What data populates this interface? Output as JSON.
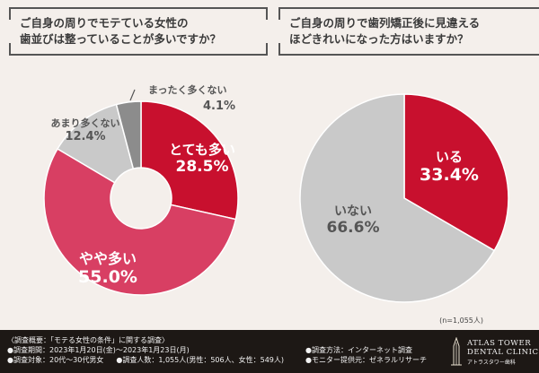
{
  "questions": {
    "left_line1": "ご自身の周りでモテている女性の",
    "left_line2": "歯並びは整っていることが多いですか？",
    "right_line1": "ご自身の周りで歯列矯正後に見違える",
    "right_line2": "ほどきれいになった方はいますか？"
  },
  "chart_data": [
    {
      "type": "pie",
      "style": "donut",
      "categories": [
        "とても多い",
        "やや多い",
        "あまり多くない",
        "まったく多くない"
      ],
      "values": [
        28.5,
        55.0,
        12.4,
        4.1
      ],
      "value_labels": [
        "28.5%",
        "55.0%",
        "12.4%",
        "4.1%"
      ],
      "colors": [
        "#c8102e",
        "#d83f63",
        "#c9c9c9",
        "#8c8c8c"
      ]
    },
    {
      "type": "pie",
      "categories": [
        "いる",
        "いない"
      ],
      "values": [
        33.4,
        66.6
      ],
      "value_labels": [
        "33.4%",
        "66.6%"
      ],
      "colors": [
        "#c8102e",
        "#c9c9c9"
      ]
    }
  ],
  "sample_note": "(n=1,055人)",
  "footer": {
    "survey_title": "〈調査概要：「モテる女性の条件」に関する調査〉",
    "period": "●調査期間：2023年1月20日(金)〜2023年1月23日(月)",
    "target": "●調査対象：20代〜30代男女",
    "count": "●調査人数：1,055人(男性：506人、女性：549人)",
    "method": "●調査方法：インターネット調査",
    "provider": "●モニター提供元：ゼネラルリサーチ",
    "logo_line1": "ATLAS TOWER",
    "logo_line2": "DENTAL CLINIC",
    "logo_line3": "アトラスタワー歯科"
  }
}
